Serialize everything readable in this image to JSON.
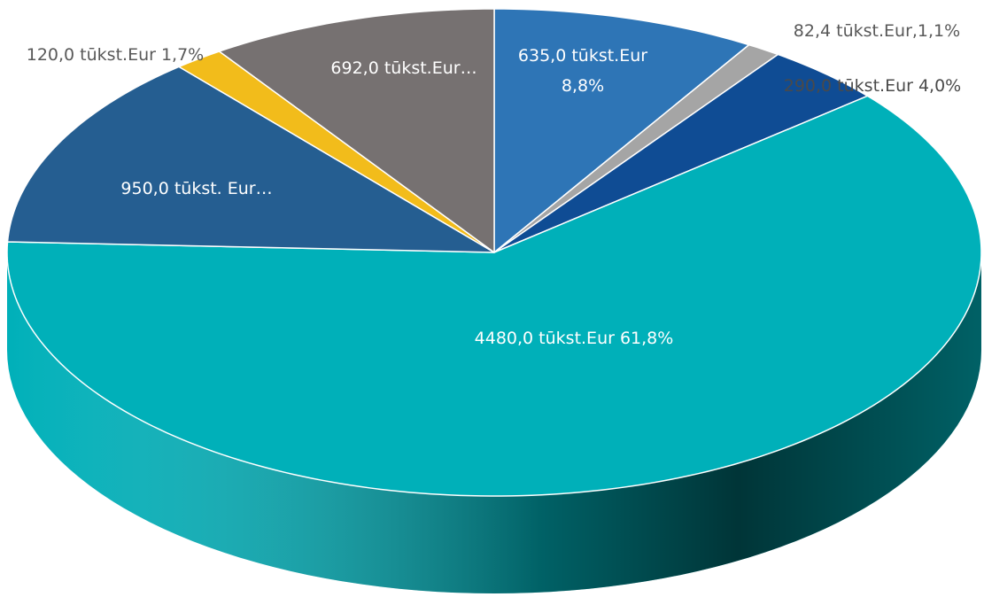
{
  "chart_data": {
    "type": "pie3d",
    "categories": [
      null,
      null,
      null,
      null,
      null,
      null,
      null
    ],
    "values": [
      635,
      82.4,
      290,
      4480,
      950,
      120,
      692
    ],
    "value_labels": [
      "635,0 tūkst.Eur 8,8%",
      "82,4 tūkst.Eur,1,1%",
      "290,0 tūkst.Eur 4,0%",
      "4480,0 tūkst.Eur 61,8%",
      "950,0 tūkst. Eur…",
      "120,0 tūkst.Eur 1,7%",
      "692,0 tūkst.Eur…"
    ],
    "colors": [
      "#2e75b6",
      "#a5a5a5",
      "#0f4c94",
      "#00b0b9",
      "#255e91",
      "#f2bc1b",
      "#767171"
    ]
  }
}
